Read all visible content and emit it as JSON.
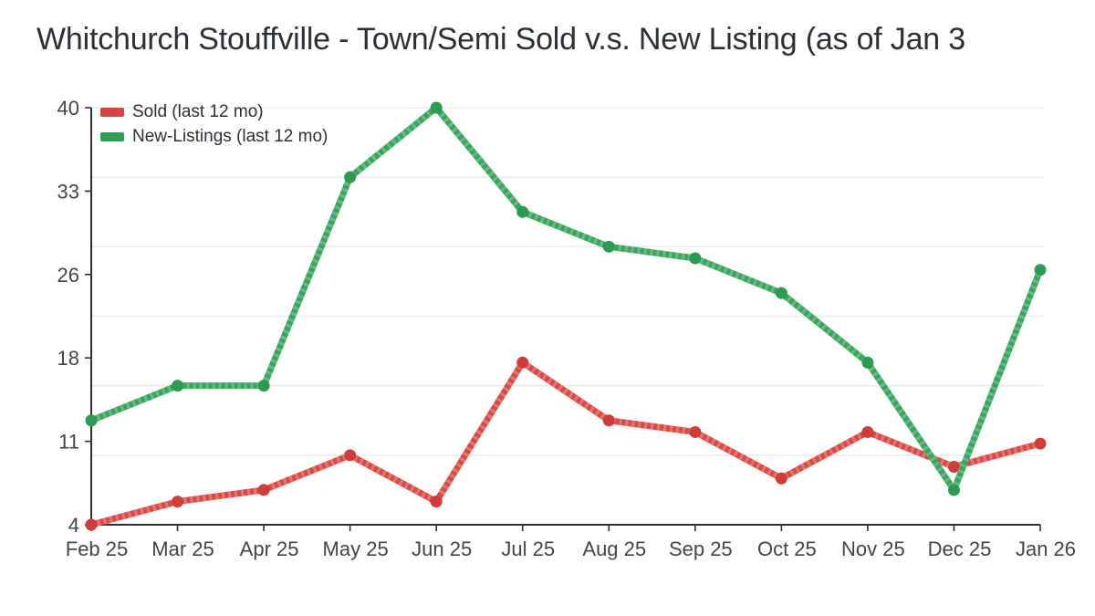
{
  "title": "Whitchurch Stouffville - Town/Semi Sold v.s. New Listing (as of Jan 3",
  "colors": {
    "background": "#ffffff",
    "title_text": "#2b2f36",
    "axis_line": "#2f2f2f",
    "tick_label": "#444444",
    "gridline": "#e8e8e8",
    "sold_line": "#d84a46",
    "sold_hatch": "#ea7b74",
    "sold_marker": "#d03c39",
    "sold_swatch": "#d9423f",
    "new_listings_line": "#39a45d",
    "new_listings_hatch": "#6cbf87",
    "new_listings_marker": "#2d9a52",
    "new_listings_swatch": "#2f9e53"
  },
  "legend": {
    "position": "top-left",
    "items": [
      {
        "id": "sold",
        "label": "Sold (last 12 mo)"
      },
      {
        "id": "new-listings",
        "label": "New-Listings (last 12 mo)"
      }
    ]
  },
  "chart_data": {
    "type": "line",
    "title": "Whitchurch Stouffville - Town/Semi Sold v.s. New Listing (as of Jan 3",
    "categories": [
      "Feb 25",
      "Mar 25",
      "Apr 25",
      "May 25",
      "Jun 25",
      "Jul 25",
      "Aug 25",
      "Sep 25",
      "Oct 25",
      "Nov 25",
      "Dec 25",
      "Jan 26"
    ],
    "series": [
      {
        "name": "Sold (last 12 mo)",
        "color": "#d84a46",
        "hatch_color": "#ea7b74",
        "marker_color": "#d03c39",
        "values": [
          4,
          6,
          7,
          10,
          6,
          18,
          13,
          12,
          8,
          12,
          9,
          11
        ]
      },
      {
        "name": "New-Listings (last 12 mo)",
        "color": "#39a45d",
        "hatch_color": "#6cbf87",
        "marker_color": "#2d9a52",
        "values": [
          13,
          16,
          16,
          34,
          40,
          31,
          28,
          27,
          24,
          18,
          7,
          26
        ]
      }
    ],
    "xlabel": "",
    "ylabel": "",
    "y_axis": {
      "min": 4,
      "max": 40,
      "tick_labels": [
        "4",
        "11",
        "18",
        "26",
        "33",
        "40"
      ],
      "gridline_values": [
        10,
        16,
        22,
        28,
        34,
        40
      ]
    },
    "grid": "horizontal-only",
    "legend_position": "top-left"
  }
}
